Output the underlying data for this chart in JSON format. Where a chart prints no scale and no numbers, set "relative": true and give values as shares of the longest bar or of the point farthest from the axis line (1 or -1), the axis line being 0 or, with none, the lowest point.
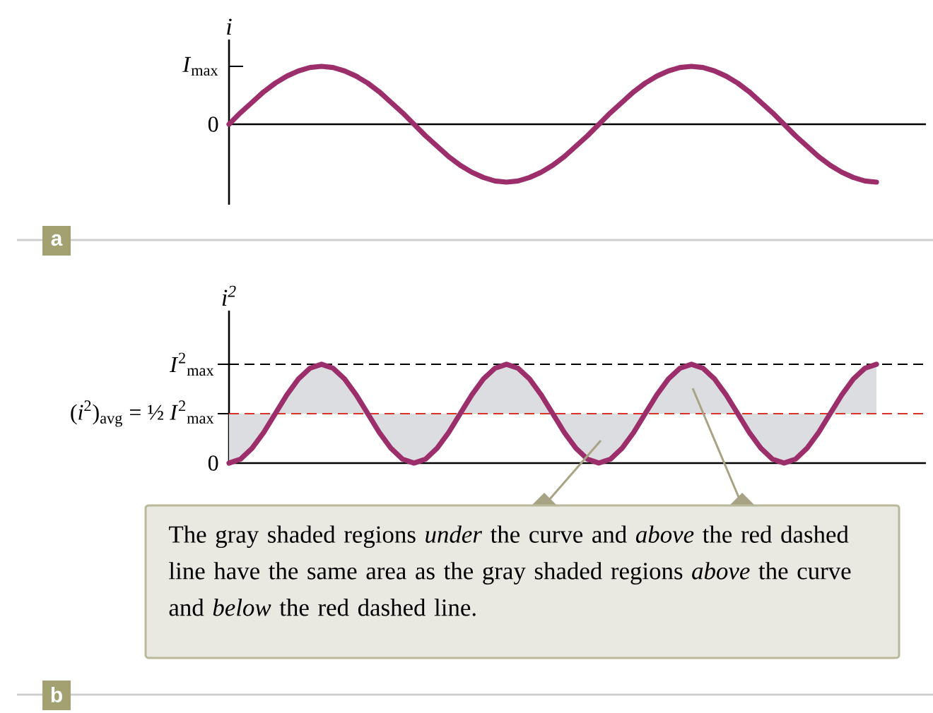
{
  "chart_data": [
    {
      "type": "line",
      "relative": true,
      "ylabel": "i",
      "categories": [
        null,
        null,
        null,
        null,
        null,
        null,
        null,
        null,
        null,
        null,
        null,
        null,
        null,
        null,
        null,
        null,
        null,
        null,
        null,
        null,
        null,
        null,
        null,
        null,
        null,
        null,
        null,
        null,
        null,
        null,
        null,
        null,
        null,
        null,
        null,
        null,
        null,
        null,
        null,
        null,
        null,
        null,
        null,
        null,
        null,
        null,
        null,
        null,
        null,
        null,
        null,
        null,
        null,
        null,
        null,
        null,
        null
      ],
      "series": [
        {
          "color": "#9c2f6b",
          "values": [
            0,
            0.2,
            0.38,
            0.56,
            0.71,
            0.83,
            0.92,
            0.98,
            1,
            0.98,
            0.92,
            0.83,
            0.71,
            0.56,
            0.38,
            0.2,
            0,
            -0.2,
            -0.38,
            -0.56,
            -0.71,
            -0.83,
            -0.92,
            -0.98,
            -1,
            -0.98,
            -0.92,
            -0.83,
            -0.71,
            -0.56,
            -0.38,
            -0.2,
            0,
            0.2,
            0.38,
            0.56,
            0.71,
            0.83,
            0.92,
            0.98,
            1,
            0.98,
            0.92,
            0.83,
            0.71,
            0.56,
            0.38,
            0.2,
            0,
            -0.2,
            -0.38,
            -0.56,
            -0.71,
            -0.83,
            -0.92,
            -0.98,
            -1
          ]
        }
      ],
      "annotations": [
        "a",
        "*I*$_{max}$",
        "0"
      ]
    },
    {
      "type": "line",
      "relative": true,
      "ylabel": "i$^{2}$",
      "categories": [
        null,
        null,
        null,
        null,
        null,
        null,
        null,
        null,
        null,
        null,
        null,
        null,
        null,
        null,
        null,
        null,
        null,
        null,
        null,
        null,
        null,
        null,
        null,
        null,
        null,
        null,
        null,
        null,
        null,
        null,
        null,
        null,
        null,
        null,
        null,
        null,
        null,
        null,
        null,
        null,
        null,
        null,
        null,
        null,
        null,
        null,
        null,
        null,
        null,
        null,
        null,
        null,
        null,
        null,
        null,
        null,
        null
      ],
      "series": [
        {
          "color": "#9c2f6b",
          "values": [
            0,
            0.04,
            0.15,
            0.31,
            0.5,
            0.69,
            0.85,
            0.96,
            1,
            0.96,
            0.85,
            0.69,
            0.5,
            0.31,
            0.15,
            0.04,
            0,
            0.04,
            0.15,
            0.31,
            0.5,
            0.69,
            0.85,
            0.96,
            1,
            0.96,
            0.85,
            0.69,
            0.5,
            0.31,
            0.15,
            0.04,
            0,
            0.04,
            0.15,
            0.31,
            0.5,
            0.69,
            0.85,
            0.96,
            1,
            0.96,
            0.85,
            0.69,
            0.5,
            0.31,
            0.15,
            0.04,
            0,
            0.04,
            0.15,
            0.31,
            0.5,
            0.69,
            0.85,
            0.96,
            1
          ],
          "lower": [
            0,
            0.04,
            0.15,
            0.31,
            0.5,
            0.5,
            0.5,
            0.5,
            0.5,
            0.5,
            0.5,
            0.5,
            0.5,
            0.31,
            0.15,
            0.04,
            0,
            0.04,
            0.15,
            0.31,
            0.5,
            0.5,
            0.5,
            0.5,
            0.5,
            0.5,
            0.5,
            0.5,
            0.5,
            0.31,
            0.15,
            0.04,
            0,
            0.04,
            0.15,
            0.31,
            0.5,
            0.5,
            0.5,
            0.5,
            0.5,
            0.5,
            0.5,
            0.5,
            0.5,
            0.31,
            0.15,
            0.04,
            0,
            0.04,
            0.15,
            0.31,
            0.5,
            0.5,
            0.5,
            0.5,
            0.5
          ],
          "upper": [
            0.5,
            0.5,
            0.5,
            0.5,
            0.5,
            0.69,
            0.85,
            0.96,
            1,
            0.96,
            0.85,
            0.69,
            0.5,
            0.5,
            0.5,
            0.5,
            0.5,
            0.5,
            0.5,
            0.5,
            0.5,
            0.69,
            0.85,
            0.96,
            1,
            0.96,
            0.85,
            0.69,
            0.5,
            0.5,
            0.5,
            0.5,
            0.5,
            0.5,
            0.5,
            0.5,
            0.5,
            0.69,
            0.85,
            0.96,
            1,
            0.96,
            0.85,
            0.69,
            0.5,
            0.5,
            0.5,
            0.5,
            0.5,
            0.5,
            0.5,
            0.5,
            0.5,
            0.69,
            0.85,
            0.96,
            1
          ]
        }
      ],
      "ref_lines": [
        {
          "axis": "y",
          "value": 1,
          "color": "#000000",
          "line_style": "dashed",
          "label": "*I*$^{2}$$_{max}$"
        },
        {
          "axis": "y",
          "value": 0.5,
          "color": "#d9322b",
          "line_style": "dashed",
          "label": "(*i*$^{2}$)$_{avg}$ = ½ *I*$^{2}$$_{max}$"
        }
      ],
      "annotations": [
        "b",
        "0",
        "The gray shaded regions *under* the curve and *above* the red dashed line have the same area as the gray shaded regions *above* the curve and *below* the red dashed line."
      ]
    }
  ]
}
